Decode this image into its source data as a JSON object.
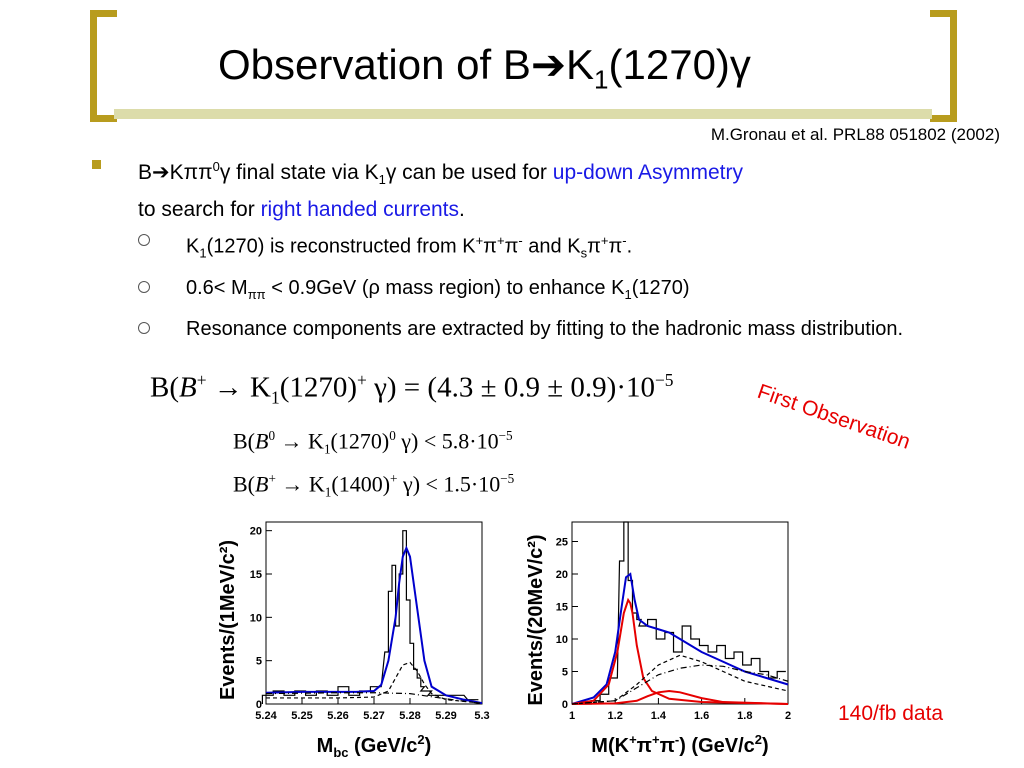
{
  "title": {
    "pre": "Observation of B",
    "arrow": "➔",
    "k": "K",
    "k_sub": "1",
    "post": "(1270)γ"
  },
  "citation": "M.Gronau et al. PRL88 051802 (2002)",
  "bullet": {
    "line1_a": "B",
    "line1_arrow": "➔",
    "line1_b": "Kππ",
    "line1_b_sup": "0",
    "line1_c": "γ final state via K",
    "line1_c_sub": "1",
    "line1_d": "γ can be used for ",
    "line1_link1": "up-down Asymmetry",
    "line2_a": "to search for ",
    "line2_link2": "right handed currents",
    "line2_end": "."
  },
  "sub_items": {
    "i1": {
      "a": "K",
      "a_sub": "1",
      "b": "(1270) is reconstructed from K",
      "b_sup": "+",
      "c": "π",
      "c_sup": "+",
      "d": "π",
      "d_sup": "-",
      "e": " and K",
      "e_sub": "s",
      "f": "π",
      "f_sup": "+",
      "g": "π",
      "g_sup": "-",
      "h": "."
    },
    "i2": {
      "a": "0.6< M",
      "a_sub": "ππ",
      "b": " < 0.9GeV (ρ mass region) to enhance K",
      "b_sub": "1",
      "c": "(1270)"
    },
    "i3": {
      "text": "Resonance components are extracted by fitting to the hadronic mass distribution."
    }
  },
  "equations": {
    "eq1": {
      "a": "B(",
      "b": "B",
      "b_sup": "+",
      "c": " → K",
      "c_sub": "1",
      "d": "(1270)",
      "d_sup": "+",
      "e": " γ) = ",
      "f": "(4.3 ± 0.9 ± 0.9)",
      "g": "·10",
      "g_sup": "−5"
    },
    "eq2": {
      "a": "B(",
      "b": "B",
      "b_sup": "0",
      "c": " → K",
      "c_sub": "1",
      "d": "(1270)",
      "d_sup": "0",
      "e": " γ) < 5.8·10",
      "e_sup": "−5"
    },
    "eq3": {
      "a": "B(",
      "b": "B",
      "b_sup": "+",
      "c": " → K",
      "c_sub": "1",
      "d": "(1400)",
      "d_sup": "+",
      "e": " γ) < 1.5·10",
      "e_sup": "−5"
    }
  },
  "first_observation": "First Observation",
  "data_label": "140/fb data",
  "chart_data": [
    {
      "type": "line",
      "ylabel": "Events/(1MeV/c²)",
      "xlabel": "M_bc (GeV/c²)",
      "xlabel_main": "M",
      "xlabel_sub": "bc",
      "xlabel_rest": " (GeV/c",
      "xlabel_sup": "2",
      "xlabel_end": ")",
      "xlim": [
        5.24,
        5.3
      ],
      "ylim": [
        0,
        21
      ],
      "x_ticks": [
        "5.24",
        "5.25",
        "5.26",
        "5.27",
        "5.28",
        "5.29",
        "5.3"
      ],
      "y_ticks": [
        "0",
        "5",
        "10",
        "15",
        "20"
      ],
      "series": [
        {
          "color": "#000000",
          "style": "histogram",
          "x": [
            5.2405,
            5.2435,
            5.2465,
            5.2495,
            5.2525,
            5.2555,
            5.2585,
            5.2615,
            5.2645,
            5.2675,
            5.2705,
            5.2735,
            5.2745,
            5.2755,
            5.2765,
            5.2775,
            5.2785,
            5.2795,
            5.2805,
            5.2815,
            5.2825,
            5.2835,
            5.2845,
            5.2875,
            5.2925,
            5.2975
          ],
          "y": [
            1,
            1.5,
            1,
            1.5,
            1,
            1.5,
            1,
            2,
            1,
            1.5,
            2,
            6,
            13,
            16,
            9,
            15,
            20,
            12,
            7,
            4,
            3,
            2,
            1.5,
            1,
            1,
            0.5
          ]
        },
        {
          "color": "#0000cc",
          "style": "solid",
          "x": [
            5.24,
            5.25,
            5.26,
            5.265,
            5.27,
            5.272,
            5.274,
            5.276,
            5.277,
            5.278,
            5.279,
            5.28,
            5.282,
            5.284,
            5.286,
            5.29,
            5.295,
            5.3
          ],
          "y": [
            1.3,
            1.4,
            1.4,
            1.4,
            1.5,
            2.2,
            5,
            10,
            14,
            17,
            18,
            17,
            11,
            5,
            2,
            1,
            0.5,
            0.1
          ]
        },
        {
          "color": "#000000",
          "style": "dashed",
          "x": [
            5.24,
            5.26,
            5.27,
            5.274,
            5.276,
            5.278,
            5.28,
            5.282,
            5.284,
            5.286,
            5.29,
            5.3
          ],
          "y": [
            0.7,
            0.7,
            0.8,
            1.5,
            3,
            4.5,
            4.8,
            3.8,
            2.3,
            1.2,
            0.5,
            0.1
          ]
        },
        {
          "color": "#000000",
          "style": "dashdot",
          "x": [
            5.24,
            5.25,
            5.26,
            5.27,
            5.28,
            5.29,
            5.3
          ],
          "y": [
            1.2,
            1.25,
            1.3,
            1.3,
            1.2,
            0.6,
            0.05
          ]
        }
      ]
    },
    {
      "type": "line",
      "ylabel": "Events/(20MeV/c²)",
      "xlabel": "M(K⁺π⁺π⁻) (GeV/c²)",
      "xlabel_main": "M(K",
      "xlabel_sup1": "+",
      "xlabel_pi1": "π",
      "xlabel_sup2": "+",
      "xlabel_pi2": "π",
      "xlabel_sup3": "-",
      "xlabel_rest": ") (GeV/c",
      "xlabel_sup4": "2",
      "xlabel_end": ")",
      "xlim": [
        1.0,
        2.0
      ],
      "ylim": [
        0,
        28
      ],
      "x_ticks": [
        "1",
        "1.2",
        "1.4",
        "1.6",
        "1.8",
        "2"
      ],
      "y_ticks": [
        "0",
        "5",
        "10",
        "15",
        "20",
        "25"
      ],
      "series": [
        {
          "color": "#000000",
          "style": "histogram",
          "x": [
            1.03,
            1.07,
            1.11,
            1.15,
            1.19,
            1.23,
            1.25,
            1.27,
            1.29,
            1.31,
            1.33,
            1.37,
            1.41,
            1.45,
            1.49,
            1.53,
            1.57,
            1.61,
            1.65,
            1.69,
            1.73,
            1.77,
            1.81,
            1.85,
            1.89,
            1.93,
            1.97
          ],
          "y": [
            0,
            0,
            0.5,
            1.5,
            4,
            22,
            28,
            19,
            14,
            13,
            12,
            13,
            10,
            11,
            8,
            12,
            10,
            9,
            8,
            9,
            7,
            8,
            6,
            7,
            5,
            4,
            5
          ]
        },
        {
          "color": "#0000cc",
          "style": "solid",
          "x": [
            1.0,
            1.1,
            1.16,
            1.2,
            1.23,
            1.25,
            1.27,
            1.29,
            1.31,
            1.35,
            1.4,
            1.45,
            1.5,
            1.6,
            1.7,
            1.8,
            1.9,
            2.0
          ],
          "y": [
            0,
            1,
            3,
            8,
            15,
            19.5,
            20,
            16,
            13,
            12,
            11.5,
            11,
            10,
            8,
            6.5,
            5,
            4,
            3
          ]
        },
        {
          "color": "#e60000",
          "style": "solid",
          "x": [
            1.0,
            1.1,
            1.17,
            1.21,
            1.24,
            1.26,
            1.27,
            1.28,
            1.3,
            1.33,
            1.37,
            1.45,
            1.6,
            2.0
          ],
          "y": [
            0,
            0.5,
            3,
            8,
            14,
            16,
            15.5,
            14,
            9,
            4,
            2,
            0.8,
            0.3,
            0
          ]
        },
        {
          "color": "#e60000",
          "style": "solid",
          "x": [
            1.0,
            1.2,
            1.3,
            1.35,
            1.4,
            1.45,
            1.5,
            1.6,
            1.7,
            2.0
          ],
          "y": [
            0,
            0.1,
            0.5,
            1.2,
            1.8,
            2,
            1.8,
            0.9,
            0.3,
            0
          ]
        },
        {
          "color": "#000000",
          "style": "dashed",
          "x": [
            1.0,
            1.2,
            1.3,
            1.4,
            1.5,
            1.6,
            1.7,
            1.8,
            2.0
          ],
          "y": [
            0,
            0.5,
            3,
            6,
            7.5,
            6.5,
            5,
            3.5,
            2
          ]
        },
        {
          "color": "#000000",
          "style": "dashdot",
          "x": [
            1.0,
            1.2,
            1.3,
            1.4,
            1.5,
            1.6,
            1.7,
            1.8,
            1.9,
            2.0
          ],
          "y": [
            0,
            0.5,
            2.5,
            4.5,
            5.5,
            6,
            5.8,
            5,
            4.5,
            3.5
          ]
        }
      ]
    }
  ]
}
